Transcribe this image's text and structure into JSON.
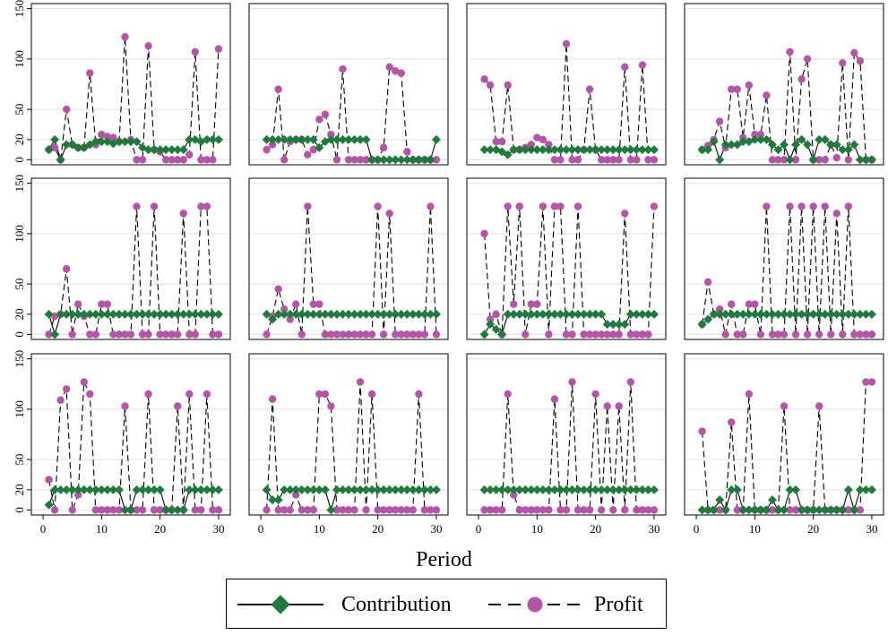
{
  "chart_data": {
    "type": "line",
    "xlabel": "Period",
    "x_ticks": [
      0,
      10,
      20,
      30
    ],
    "y_ticks": [
      0,
      20,
      50,
      100,
      150
    ],
    "ylim": [
      -5,
      155
    ],
    "xlim": [
      -2,
      32
    ],
    "grid": true,
    "legend_placement": "bottom-center",
    "colors": {
      "contribution": "#1e7b3c",
      "profit": "#b455a8"
    },
    "legend": {
      "contribution": "Contribution",
      "profit": "Profit"
    },
    "panels": [
      {
        "contribution": [
          10,
          20,
          0,
          15,
          15,
          12,
          12,
          15,
          18,
          18,
          18,
          16,
          18,
          18,
          18,
          18,
          12,
          10,
          10,
          10,
          10,
          10,
          10,
          10,
          20,
          20,
          18,
          20,
          20,
          20
        ],
        "profit": [
          10,
          12,
          0,
          50,
          15,
          12,
          12,
          86,
          15,
          25,
          23,
          22,
          18,
          122,
          20,
          0,
          0,
          113,
          10,
          8,
          0,
          0,
          0,
          0,
          5,
          107,
          0,
          0,
          0,
          110
        ]
      },
      {
        "contribution": [
          20,
          20,
          20,
          20,
          20,
          20,
          20,
          20,
          20,
          12,
          18,
          20,
          20,
          20,
          20,
          20,
          20,
          20,
          0,
          0,
          0,
          0,
          0,
          0,
          0,
          0,
          0,
          0,
          0,
          20
        ],
        "profit": [
          10,
          15,
          70,
          0,
          18,
          20,
          20,
          5,
          10,
          40,
          45,
          25,
          0,
          90,
          0,
          0,
          0,
          0,
          0,
          0,
          12,
          92,
          88,
          86,
          8,
          0,
          0,
          0,
          0,
          0
        ]
      },
      {
        "contribution": [
          10,
          10,
          10,
          8,
          5,
          10,
          10,
          10,
          10,
          10,
          10,
          10,
          10,
          10,
          10,
          10,
          10,
          10,
          10,
          10,
          10,
          10,
          10,
          10,
          10,
          10,
          10,
          10,
          10,
          10
        ],
        "profit": [
          80,
          74,
          18,
          18,
          74,
          10,
          10,
          12,
          15,
          22,
          20,
          15,
          0,
          0,
          115,
          0,
          0,
          10,
          70,
          10,
          0,
          0,
          0,
          0,
          92,
          0,
          0,
          94,
          0,
          0
        ]
      },
      {
        "contribution": [
          10,
          10,
          18,
          0,
          15,
          15,
          15,
          18,
          18,
          20,
          20,
          20,
          15,
          10,
          15,
          0,
          15,
          20,
          15,
          0,
          20,
          20,
          15,
          15,
          10,
          10,
          15,
          0,
          0,
          0
        ],
        "profit": [
          10,
          14,
          20,
          38,
          12,
          70,
          70,
          22,
          74,
          25,
          25,
          64,
          0,
          0,
          0,
          107,
          0,
          80,
          100,
          0,
          0,
          0,
          15,
          2,
          96,
          0,
          106,
          98,
          0,
          0
        ]
      },
      {
        "contribution": [
          20,
          0,
          20,
          20,
          20,
          20,
          20,
          20,
          20,
          20,
          20,
          20,
          20,
          20,
          20,
          20,
          20,
          20,
          20,
          20,
          20,
          20,
          20,
          20,
          20,
          20,
          20,
          20,
          20,
          20
        ],
        "profit": [
          0,
          18,
          20,
          65,
          0,
          30,
          18,
          0,
          0,
          30,
          30,
          0,
          0,
          0,
          0,
          127,
          0,
          0,
          127,
          0,
          0,
          0,
          0,
          120,
          0,
          0,
          127,
          127,
          0,
          0
        ]
      },
      {
        "contribution": [
          20,
          15,
          20,
          20,
          20,
          20,
          20,
          20,
          20,
          20,
          20,
          20,
          20,
          20,
          20,
          20,
          20,
          20,
          20,
          20,
          20,
          20,
          20,
          20,
          20,
          20,
          20,
          20,
          20,
          20
        ],
        "profit": [
          0,
          18,
          45,
          25,
          15,
          30,
          0,
          127,
          30,
          30,
          0,
          0,
          0,
          0,
          0,
          0,
          0,
          0,
          0,
          127,
          0,
          120,
          0,
          0,
          0,
          0,
          0,
          0,
          127,
          0
        ]
      },
      {
        "contribution": [
          0,
          10,
          5,
          0,
          20,
          20,
          20,
          20,
          20,
          20,
          20,
          20,
          20,
          20,
          20,
          20,
          20,
          20,
          20,
          20,
          20,
          10,
          10,
          10,
          10,
          20,
          20,
          20,
          20,
          20
        ],
        "profit": [
          100,
          15,
          20,
          0,
          127,
          30,
          127,
          0,
          30,
          30,
          127,
          0,
          127,
          127,
          0,
          0,
          127,
          0,
          0,
          0,
          0,
          0,
          0,
          0,
          120,
          0,
          0,
          0,
          0,
          127
        ]
      },
      {
        "contribution": [
          10,
          15,
          20,
          20,
          20,
          20,
          20,
          20,
          20,
          20,
          20,
          20,
          20,
          20,
          20,
          20,
          20,
          20,
          20,
          20,
          20,
          20,
          20,
          20,
          20,
          20,
          20,
          20,
          20,
          20
        ],
        "profit": [
          10,
          52,
          20,
          25,
          0,
          30,
          0,
          0,
          30,
          30,
          0,
          127,
          0,
          0,
          0,
          127,
          0,
          127,
          0,
          127,
          0,
          127,
          0,
          120,
          0,
          127,
          0,
          0,
          0,
          0
        ]
      },
      {
        "contribution": [
          5,
          20,
          20,
          20,
          20,
          20,
          20,
          20,
          20,
          20,
          20,
          20,
          20,
          0,
          0,
          20,
          20,
          20,
          20,
          20,
          0,
          0,
          0,
          0,
          20,
          20,
          20,
          20,
          20,
          20
        ],
        "profit": [
          30,
          0,
          109,
          120,
          0,
          15,
          127,
          115,
          0,
          0,
          0,
          0,
          0,
          103,
          0,
          0,
          0,
          115,
          0,
          0,
          0,
          0,
          103,
          0,
          115,
          0,
          0,
          115,
          0,
          0
        ]
      },
      {
        "contribution": [
          20,
          10,
          10,
          20,
          20,
          20,
          20,
          20,
          20,
          20,
          20,
          0,
          20,
          20,
          20,
          20,
          20,
          20,
          20,
          20,
          20,
          20,
          20,
          20,
          20,
          20,
          20,
          20,
          20,
          20
        ],
        "profit": [
          0,
          110,
          0,
          0,
          0,
          15,
          0,
          0,
          0,
          115,
          115,
          103,
          0,
          0,
          0,
          0,
          127,
          0,
          115,
          0,
          0,
          0,
          0,
          0,
          0,
          0,
          115,
          0,
          0,
          0
        ]
      },
      {
        "contribution": [
          20,
          20,
          20,
          20,
          20,
          20,
          20,
          20,
          20,
          20,
          20,
          20,
          20,
          20,
          20,
          20,
          20,
          20,
          20,
          20,
          20,
          20,
          20,
          20,
          20,
          20,
          20,
          20,
          20,
          20
        ],
        "profit": [
          0,
          0,
          0,
          0,
          115,
          15,
          0,
          0,
          0,
          0,
          0,
          0,
          110,
          0,
          0,
          127,
          0,
          0,
          0,
          115,
          0,
          103,
          0,
          103,
          0,
          127,
          0,
          0,
          0,
          0
        ]
      },
      {
        "contribution": [
          0,
          0,
          0,
          10,
          0,
          20,
          20,
          0,
          0,
          0,
          0,
          0,
          10,
          0,
          0,
          20,
          20,
          0,
          0,
          0,
          0,
          0,
          0,
          0,
          0,
          20,
          0,
          20,
          20,
          20
        ],
        "profit": [
          78,
          0,
          0,
          0,
          0,
          87,
          0,
          0,
          115,
          0,
          0,
          0,
          0,
          0,
          103,
          0,
          0,
          0,
          0,
          0,
          103,
          0,
          0,
          0,
          0,
          0,
          0,
          0,
          127,
          127
        ]
      }
    ]
  }
}
